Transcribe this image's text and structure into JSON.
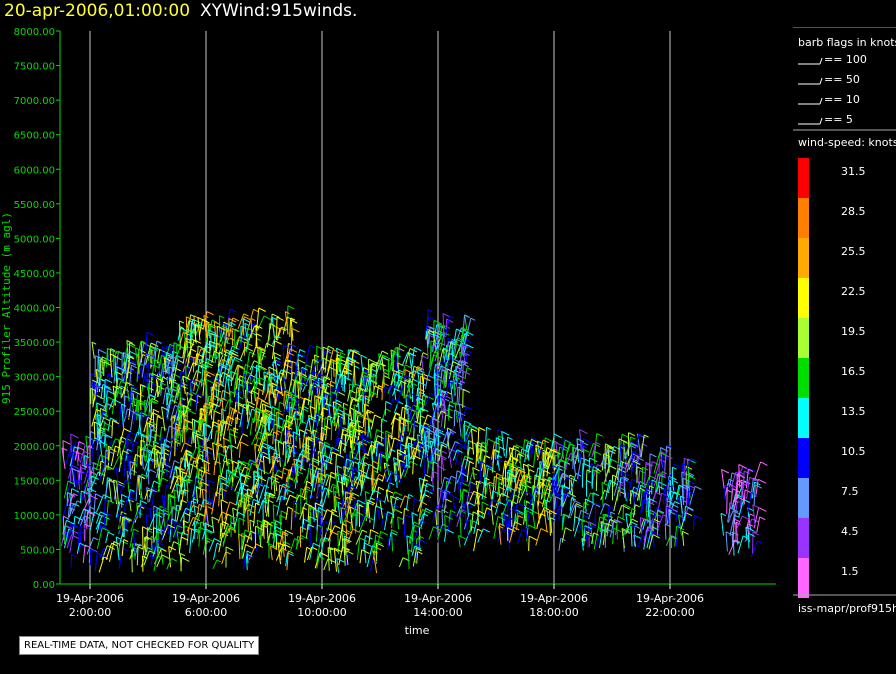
{
  "header": {
    "datetime": "20-apr-2006,01:00:00",
    "product": "XYWind:915winds."
  },
  "footer": {
    "quality_note": "REAL-TIME DATA, NOT CHECKED FOR QUALITY"
  },
  "legend": {
    "barb_title": "barb flags in knots",
    "barbs": [
      {
        "label": "== 100"
      },
      {
        "label": "== 50"
      },
      {
        "label": "== 10"
      },
      {
        "label": "== 5"
      }
    ],
    "speed_title": "wind-speed: knots",
    "colorbar": [
      {
        "label": "31.5",
        "color": "#ff0000"
      },
      {
        "label": "28.5",
        "color": "#ff8000"
      },
      {
        "label": "25.5",
        "color": "#ffaa00"
      },
      {
        "label": "22.5",
        "color": "#ffff00"
      },
      {
        "label": "19.5",
        "color": "#aaff33"
      },
      {
        "label": "16.5",
        "color": "#00dd00"
      },
      {
        "label": "13.5",
        "color": "#00ffff"
      },
      {
        "label": "10.5",
        "color": "#0000ff"
      },
      {
        "label": "7.5",
        "color": "#6699ff"
      },
      {
        "label": "4.5",
        "color": "#9933ff"
      },
      {
        "label": "1.5",
        "color": "#ff66ff"
      }
    ],
    "source": "iss-mapr/prof915h"
  },
  "chart_data": {
    "type": "scatter",
    "xlabel": "time",
    "ylabel": "915 Profiler Altitude (m agl)",
    "ylim": [
      0,
      8000
    ],
    "y_ticks": [
      "0.00",
      "500.00",
      "1000.00",
      "1500.00",
      "2000.00",
      "2500.00",
      "3000.00",
      "3500.00",
      "4000.00",
      "4500.00",
      "5000.00",
      "5500.00",
      "6000.00",
      "6500.00",
      "7000.00",
      "7500.00",
      "8000.00"
    ],
    "x_ticks": [
      {
        "date": "19-Apr-2006",
        "time": "2:00:00"
      },
      {
        "date": "19-Apr-2006",
        "time": "6:00:00"
      },
      {
        "date": "19-Apr-2006",
        "time": "10:00:00"
      },
      {
        "date": "19-Apr-2006",
        "time": "14:00:00"
      },
      {
        "date": "19-Apr-2006",
        "time": "18:00:00"
      },
      {
        "date": "19-Apr-2006",
        "time": "22:00:00"
      }
    ],
    "grid": true,
    "wind_barb_clusters": [
      {
        "start": "2006-04-19 01:00",
        "end": "2006-04-19 02:00",
        "alt_min": 200,
        "alt_max": 1900,
        "speed_kt": 8
      },
      {
        "start": "2006-04-19 02:00",
        "end": "2006-04-19 05:00",
        "alt_min": 150,
        "alt_max": 3300,
        "speed_kt": 15
      },
      {
        "start": "2006-04-19 05:00",
        "end": "2006-04-19 09:00",
        "alt_min": 150,
        "alt_max": 3700,
        "speed_kt": 19
      },
      {
        "start": "2006-04-19 09:00",
        "end": "2006-04-19 13:30",
        "alt_min": 150,
        "alt_max": 3200,
        "speed_kt": 17
      },
      {
        "start": "2006-04-19 13:30",
        "end": "2006-04-19 15:00",
        "alt_min": 500,
        "alt_max": 3700,
        "speed_kt": 12
      },
      {
        "start": "2006-04-19 15:00",
        "end": "2006-04-19 18:00",
        "alt_min": 450,
        "alt_max": 1900,
        "speed_kt": 18
      },
      {
        "start": "2006-04-19 18:00",
        "end": "2006-04-19 21:00",
        "alt_min": 450,
        "alt_max": 1900,
        "speed_kt": 13
      },
      {
        "start": "2006-04-19 21:00",
        "end": "2006-04-19 22:50",
        "alt_min": 450,
        "alt_max": 1700,
        "speed_kt": 11
      },
      {
        "start": "2006-04-19 23:50",
        "end": "2006-04-20 01:00",
        "alt_min": 300,
        "alt_max": 1500,
        "speed_kt": 6
      }
    ]
  }
}
